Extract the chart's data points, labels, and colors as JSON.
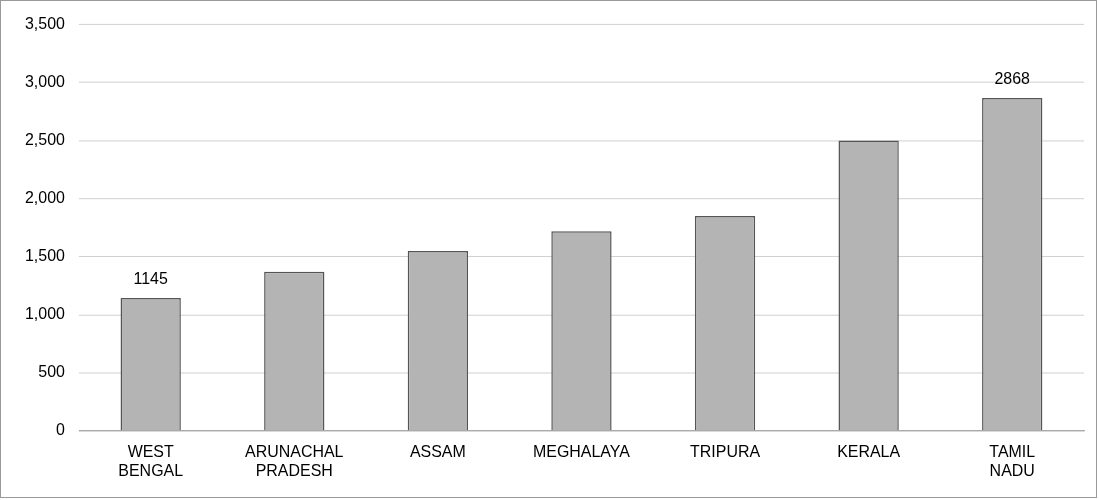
{
  "chart_data": {
    "type": "bar",
    "categories": [
      "WEST BENGAL",
      "ARUNACHAL PRADESH",
      "ASSAM",
      "MEGHALAYA",
      "TRIPURA",
      "KERALA",
      "TAMIL NADU"
    ],
    "values": [
      1145,
      1370,
      1550,
      1720,
      1850,
      2500,
      2868
    ],
    "value_labels": [
      "1145",
      null,
      null,
      null,
      null,
      null,
      "2868"
    ],
    "color": "#b4b4b4",
    "ylim": [
      0,
      3500
    ],
    "yticks": [
      {
        "value": 0,
        "label": "0"
      },
      {
        "value": 500,
        "label": "500"
      },
      {
        "value": 1000,
        "label": "1,000"
      },
      {
        "value": 1500,
        "label": "1,500"
      },
      {
        "value": 2000,
        "label": "2,000"
      },
      {
        "value": 2500,
        "label": "2,500"
      },
      {
        "value": 3000,
        "label": "3,000"
      },
      {
        "value": 3500,
        "label": "3,500"
      }
    ],
    "grid": "y"
  }
}
